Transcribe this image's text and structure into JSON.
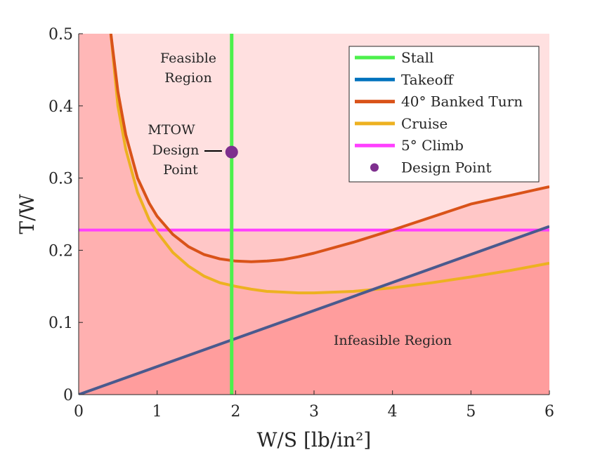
{
  "chart_data": {
    "type": "line",
    "xlabel": "W/S [lb/in²]",
    "ylabel": "T/W",
    "xlim": [
      0,
      6
    ],
    "ylim": [
      0,
      0.5
    ],
    "x_ticks": [
      "0",
      "1",
      "2",
      "3",
      "4",
      "5",
      "6"
    ],
    "y_ticks": [
      "0",
      "0.1",
      "0.2",
      "0.3",
      "0.4",
      "0.5"
    ],
    "grid": false,
    "legend_position": "top-right",
    "series": [
      {
        "name": "Stall",
        "type": "vertical",
        "x": 1.95,
        "color": "#4cf04c"
      },
      {
        "name": "Takeoff",
        "type": "line",
        "points": [
          [
            0,
            0
          ],
          [
            6,
            0.233
          ]
        ],
        "color": "#0072bd"
      },
      {
        "name": "40° Banked Turn",
        "type": "curve",
        "color": "#d95319",
        "points": [
          [
            0.41,
            0.5
          ],
          [
            0.5,
            0.42
          ],
          [
            0.6,
            0.36
          ],
          [
            0.75,
            0.3
          ],
          [
            0.9,
            0.265
          ],
          [
            1.0,
            0.247
          ],
          [
            1.2,
            0.222
          ],
          [
            1.4,
            0.205
          ],
          [
            1.6,
            0.194
          ],
          [
            1.8,
            0.188
          ],
          [
            2.0,
            0.185
          ],
          [
            2.2,
            0.184
          ],
          [
            2.4,
            0.185
          ],
          [
            2.6,
            0.187
          ],
          [
            2.8,
            0.191
          ],
          [
            3.0,
            0.196
          ],
          [
            3.5,
            0.211
          ],
          [
            4.0,
            0.228
          ],
          [
            4.5,
            0.246
          ],
          [
            5.0,
            0.264
          ],
          [
            5.5,
            0.276
          ],
          [
            6.0,
            0.288
          ]
        ]
      },
      {
        "name": "Cruise",
        "type": "curve",
        "color": "#edb120",
        "points": [
          [
            0.41,
            0.5
          ],
          [
            0.5,
            0.4
          ],
          [
            0.6,
            0.34
          ],
          [
            0.75,
            0.28
          ],
          [
            0.9,
            0.242
          ],
          [
            1.0,
            0.225
          ],
          [
            1.2,
            0.197
          ],
          [
            1.4,
            0.178
          ],
          [
            1.6,
            0.164
          ],
          [
            1.8,
            0.155
          ],
          [
            2.0,
            0.15
          ],
          [
            2.2,
            0.146
          ],
          [
            2.4,
            0.143
          ],
          [
            2.6,
            0.142
          ],
          [
            2.8,
            0.141
          ],
          [
            3.0,
            0.141
          ],
          [
            3.5,
            0.143
          ],
          [
            4.0,
            0.148
          ],
          [
            4.5,
            0.155
          ],
          [
            5.0,
            0.163
          ],
          [
            5.5,
            0.172
          ],
          [
            6.0,
            0.182
          ]
        ]
      },
      {
        "name": "5° Climb",
        "type": "horizontal",
        "y": 0.228,
        "color": "#ff40ff"
      },
      {
        "name": "Design Point",
        "type": "scatter",
        "points": [
          [
            1.95,
            0.336
          ]
        ],
        "color": "#7e2f8e"
      }
    ],
    "annotations": {
      "feasible_line1": "Feasible",
      "feasible_line2": "Region",
      "mtow_line1": "MTOW",
      "mtow_line2": "Design",
      "mtow_line3": "Point",
      "infeasible": "Infeasible Region"
    }
  }
}
